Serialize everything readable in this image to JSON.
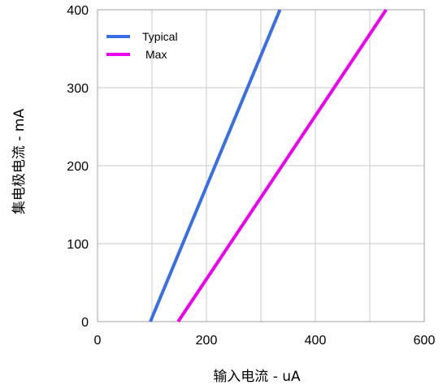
{
  "chart_data": {
    "type": "line",
    "xlabel": "输入电流 - uA",
    "ylabel": "集电极电流 - mA",
    "xlim": [
      0,
      600
    ],
    "ylim": [
      0,
      400
    ],
    "xticks": [
      0,
      200,
      400,
      600
    ],
    "yticks": [
      0,
      100,
      200,
      300,
      400
    ],
    "x_tick_labels": [
      "0",
      "200",
      "400",
      "600"
    ],
    "y_tick_labels": [
      "0",
      "100",
      "200",
      "300",
      "400"
    ],
    "grid": true,
    "legend_position": "top-left",
    "series": [
      {
        "name": "Typical",
        "color": "#3a6ee8",
        "x": [
          97,
          335
        ],
        "y": [
          0,
          400
        ]
      },
      {
        "name": "Max",
        "color": "#f000f0",
        "x": [
          148,
          530
        ],
        "y": [
          0,
          400
        ]
      }
    ]
  }
}
